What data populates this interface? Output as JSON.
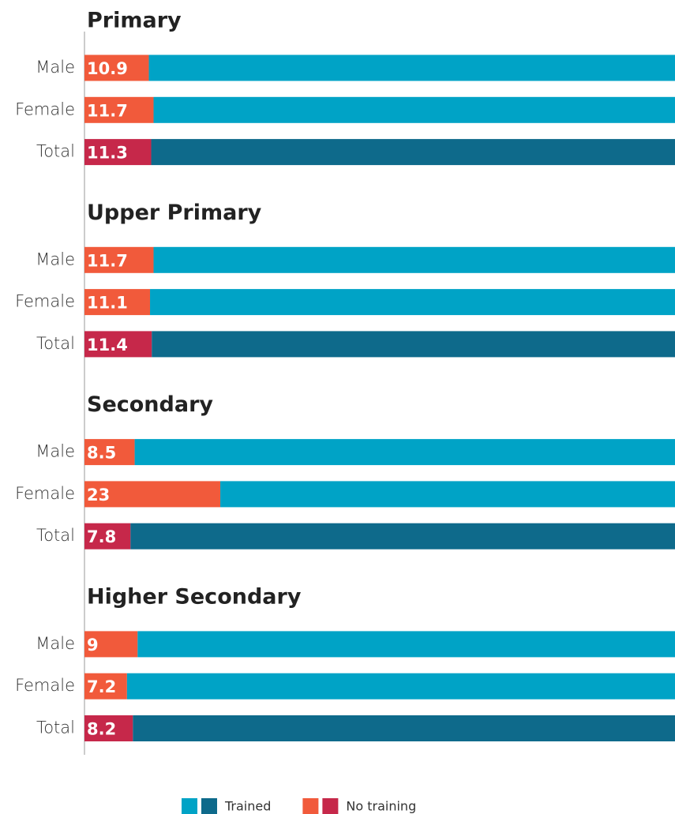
{
  "chart_data": {
    "type": "bar",
    "orientation": "horizontal",
    "stacked": true,
    "xlim": [
      0,
      100
    ],
    "legend": [
      {
        "name": "Trained",
        "colors": [
          "#00a3c6",
          "#0e6a8b"
        ]
      },
      {
        "name": "No training",
        "colors": [
          "#f15a3b",
          "#c6284a"
        ]
      }
    ],
    "panels": [
      {
        "title": "Primary",
        "categories": [
          "Male",
          "Female",
          "Total"
        ],
        "series": [
          {
            "values": [
              10.9,
              11.7,
              11.3
            ],
            "colors": [
              "#f15a3b",
              "#f15a3b",
              "#c6284a"
            ]
          },
          {
            "values": [
              89.1,
              88.3,
              88.7
            ],
            "colors": [
              "#00a3c6",
              "#00a3c6",
              "#0e6a8b"
            ]
          }
        ]
      },
      {
        "title": "Upper Primary",
        "categories": [
          "Male",
          "Female",
          "Total"
        ],
        "series": [
          {
            "values": [
              11.7,
              11.1,
              11.4
            ],
            "colors": [
              "#f15a3b",
              "#f15a3b",
              "#c6284a"
            ]
          },
          {
            "values": [
              88.3,
              88.9,
              88.6
            ],
            "colors": [
              "#00a3c6",
              "#00a3c6",
              "#0e6a8b"
            ]
          }
        ]
      },
      {
        "title": "Secondary",
        "categories": [
          "Male",
          "Female",
          "Total"
        ],
        "series": [
          {
            "values": [
              8.5,
              23,
              7.8
            ],
            "colors": [
              "#f15a3b",
              "#f15a3b",
              "#c6284a"
            ]
          },
          {
            "values": [
              91.5,
              77,
              92.2
            ],
            "colors": [
              "#00a3c6",
              "#00a3c6",
              "#0e6a8b"
            ]
          }
        ]
      },
      {
        "title": "Higher Secondary",
        "categories": [
          "Male",
          "Female",
          "Total"
        ],
        "series": [
          {
            "values": [
              9,
              7.2,
              8.2
            ],
            "colors": [
              "#f15a3b",
              "#f15a3b",
              "#c6284a"
            ]
          },
          {
            "values": [
              91,
              92.8,
              91.8
            ],
            "colors": [
              "#00a3c6",
              "#00a3c6",
              "#0e6a8b"
            ]
          }
        ]
      }
    ]
  }
}
